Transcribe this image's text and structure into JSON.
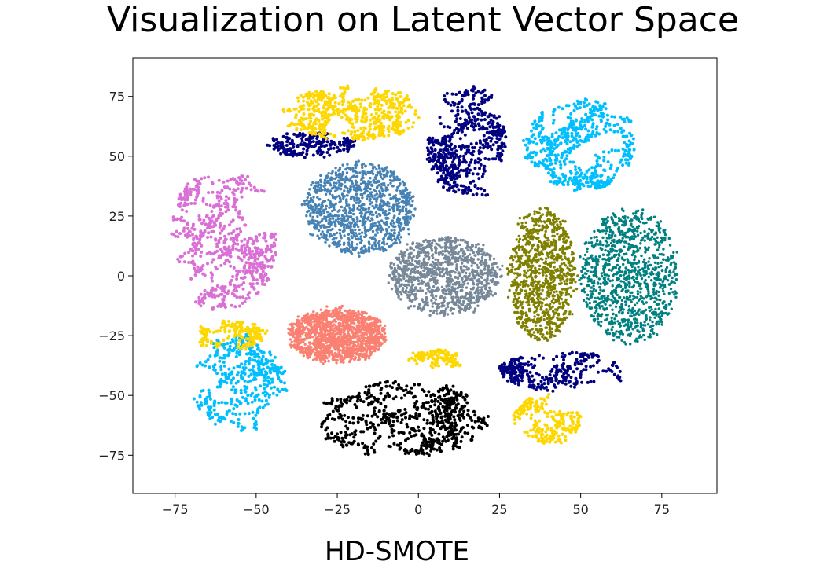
{
  "title": "Visualization on Latent Vector Space",
  "caption": "HD-SMOTE",
  "chart_data": {
    "type": "scatter",
    "title": "Visualization on Latent Vector Space",
    "xlabel": "",
    "ylabel": "",
    "xlim": [
      -88,
      92
    ],
    "ylim": [
      -91,
      91
    ],
    "xticks": [
      -75,
      -50,
      -25,
      0,
      25,
      50,
      75
    ],
    "yticks": [
      75,
      50,
      25,
      0,
      -25,
      -50,
      -75
    ],
    "grid": false,
    "legend": "none",
    "clusters": [
      {
        "color": "#fa8072",
        "style": "blob",
        "center": [
          -25,
          -25
        ],
        "spread": [
          15,
          11
        ],
        "count": 1400
      },
      {
        "color": "#778899",
        "style": "blob",
        "center": [
          8,
          0
        ],
        "spread": [
          17,
          16
        ],
        "count": 1100
      },
      {
        "color": "#4682b4",
        "style": "blob",
        "center": [
          -18,
          28
        ],
        "spread": [
          17,
          19
        ],
        "count": 1100
      },
      {
        "color": "#808000",
        "style": "blob",
        "center": [
          38,
          0
        ],
        "spread": [
          10,
          28
        ],
        "count": 1000
      },
      {
        "color": "#008080",
        "style": "blob",
        "center": [
          65,
          0
        ],
        "spread": [
          15,
          28
        ],
        "count": 1050
      },
      {
        "color": "#000000",
        "style": "strands",
        "center": [
          -5,
          -60
        ],
        "spread": [
          26,
          16
        ],
        "count": 650
      },
      {
        "color": "#da70d6",
        "style": "strands",
        "center": [
          -60,
          15
        ],
        "spread": [
          16,
          30
        ],
        "count": 650
      },
      {
        "color": "#000080",
        "style": "strands",
        "center": [
          15,
          55
        ],
        "spread": [
          12,
          25
        ],
        "count": 550
      },
      {
        "color": "#000080",
        "style": "strands",
        "center": [
          -33,
          55
        ],
        "spread": [
          13,
          5
        ],
        "count": 220
      },
      {
        "color": "#000080",
        "style": "strands",
        "center": [
          45,
          -40
        ],
        "spread": [
          20,
          8
        ],
        "count": 300
      },
      {
        "color": "#00bfff",
        "style": "strands",
        "center": [
          50,
          55
        ],
        "spread": [
          17,
          19
        ],
        "count": 550
      },
      {
        "color": "#00bfff",
        "style": "strands",
        "center": [
          -55,
          -45
        ],
        "spread": [
          14,
          20
        ],
        "count": 420
      },
      {
        "color": "#ffd700",
        "style": "strands",
        "center": [
          -20,
          68
        ],
        "spread": [
          22,
          11
        ],
        "count": 550
      },
      {
        "color": "#ffd700",
        "style": "strands",
        "center": [
          -58,
          -25
        ],
        "spread": [
          11,
          6
        ],
        "count": 170
      },
      {
        "color": "#ffd700",
        "style": "strands",
        "center": [
          40,
          -60
        ],
        "spread": [
          10,
          10
        ],
        "count": 220
      },
      {
        "color": "#ffd700",
        "style": "strands",
        "center": [
          5,
          -35
        ],
        "spread": [
          9,
          4
        ],
        "count": 120
      }
    ]
  }
}
